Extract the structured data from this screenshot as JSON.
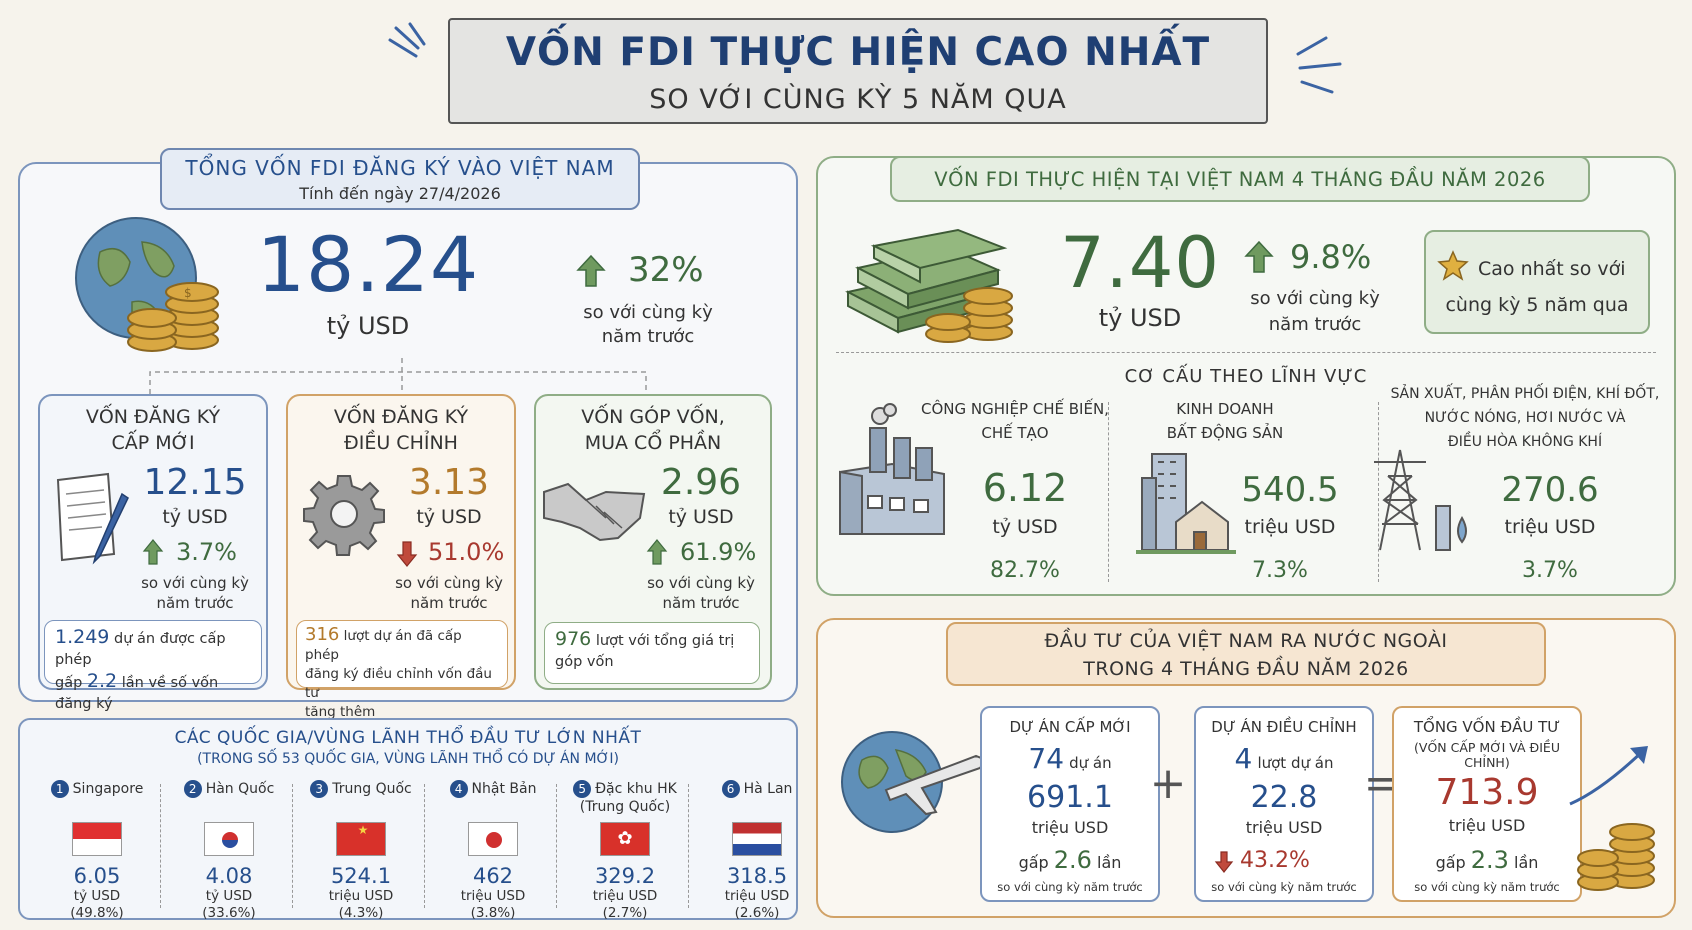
{
  "header": {
    "title": "VỐN FDI THỰC HIỆN CAO NHẤT",
    "subtitle": "SO VỚI CÙNG KỲ 5 NĂM QUA"
  },
  "registered": {
    "title": "TỔNG VỐN FDI ĐĂNG KÝ VÀO VIỆT NAM",
    "date": "Tính đến ngày 27/4/2026",
    "value": "18.24",
    "unit": "tỷ USD",
    "change": "32%",
    "change_note1": "so với cùng kỳ",
    "change_note2": "năm trước",
    "new": {
      "title1": "VỐN ĐĂNG KÝ",
      "title2": "CẤP MỚI",
      "value": "12.15",
      "unit": "tỷ USD",
      "change": "3.7%",
      "note1": "so với cùng kỳ",
      "note2": "năm trước",
      "num1": "1.249",
      "text1": "dự án được cấp phép",
      "pre2": "gấp",
      "num2": "2.2",
      "text2": "lần về số vốn đăng ký"
    },
    "adjust": {
      "title1": "VỐN ĐĂNG KÝ",
      "title2": "ĐIỀU CHỈNH",
      "value": "3.13",
      "unit": "tỷ USD",
      "change": "51.0%",
      "note1": "so với cùng kỳ",
      "note2": "năm trước",
      "num1": "316",
      "text1": "lượt dự án đã cấp phép",
      "text2": "đăng ký điều chỉnh vốn đầu tư",
      "text3": "tăng thêm"
    },
    "contrib": {
      "title1": "VỐN GÓP VỐN,",
      "title2": "MUA CỔ PHẦN",
      "value": "2.96",
      "unit": "tỷ USD",
      "change": "61.9%",
      "note1": "so với cùng kỳ",
      "note2": "năm trước",
      "num1": "976",
      "text1": "lượt với tổng giá trị",
      "text2": "góp vốn"
    }
  },
  "countries": {
    "title": "CÁC QUỐC GIA/VÙNG LÃNH THỔ ĐẦU TƯ LỚN NHẤT",
    "subtitle": "(TRONG SỐ 53 QUỐC GIA, VÙNG LÃNH THỔ CÓ DỰ ÁN MỚI)",
    "items": [
      {
        "rank": "1",
        "name": "Singapore",
        "name2": "",
        "value": "6.05",
        "unit": "tỷ USD",
        "share": "(49.8%)"
      },
      {
        "rank": "2",
        "name": "Hàn Quốc",
        "name2": "",
        "value": "4.08",
        "unit": "tỷ USD",
        "share": "(33.6%)"
      },
      {
        "rank": "3",
        "name": "Trung Quốc",
        "name2": "",
        "value": "524.1",
        "unit": "triệu USD",
        "share": "(4.3%)"
      },
      {
        "rank": "4",
        "name": "Nhật Bản",
        "name2": "",
        "value": "462",
        "unit": "triệu USD",
        "share": "(3.8%)"
      },
      {
        "rank": "5",
        "name": "Đặc khu HK",
        "name2": "(Trung Quốc)",
        "value": "329.2",
        "unit": "triệu USD",
        "share": "(2.7%)"
      },
      {
        "rank": "6",
        "name": "Hà Lan",
        "name2": "",
        "value": "318.5",
        "unit": "triệu USD",
        "share": "(2.6%)"
      }
    ]
  },
  "disbursed": {
    "title": "VỐN FDI THỰC HIỆN TẠI VIỆT NAM 4 THÁNG ĐẦU NĂM 2026",
    "value": "7.40",
    "unit": "tỷ USD",
    "change": "9.8%",
    "change_note1": "so với cùng kỳ",
    "change_note2": "năm trước",
    "badge1": "Cao nhất so với",
    "badge2": "cùng kỳ 5 năm qua",
    "structure_title": "CƠ CẤU THEO LĨNH VỰC",
    "sectors": [
      {
        "name1": "CÔNG NGHIỆP CHẾ BIẾN,",
        "name2": "CHẾ TẠO",
        "name3": "",
        "value": "6.12",
        "unit": "tỷ USD",
        "share": "82.7%"
      },
      {
        "name1": "KINH DOANH",
        "name2": "BẤT ĐỘNG SẢN",
        "name3": "",
        "value": "540.5",
        "unit": "triệu USD",
        "share": "7.3%"
      },
      {
        "name1": "SẢN XUẤT, PHÂN PHỐI ĐIỆN, KHÍ ĐỐT,",
        "name2": "NƯỚC NÓNG, HƠI NƯỚC VÀ",
        "name3": "ĐIỀU HÒA KHÔNG KHÍ",
        "value": "270.6",
        "unit": "triệu USD",
        "share": "3.7%"
      }
    ]
  },
  "outward": {
    "title1": "ĐẦU TƯ CỦA VIỆT NAM RA NƯỚC NGOÀI",
    "title2": "TRONG 4 THÁNG ĐẦU NĂM 2026",
    "new": {
      "title": "DỰ ÁN CẤP MỚI",
      "count": "74",
      "count_unit": "dự án",
      "value": "691.1",
      "unit": "triệu USD",
      "pre": "gấp",
      "mult": "2.6",
      "post": "lần",
      "note": "so với cùng kỳ năm trước"
    },
    "plus": "+",
    "adjust": {
      "title": "DỰ ÁN ĐIỀU CHỈNH",
      "count": "4",
      "count_unit": "lượt dự án",
      "value": "22.8",
      "unit": "triệu USD",
      "change": "43.2%",
      "note": "so với cùng kỳ năm trước"
    },
    "equals": "=",
    "total": {
      "title1": "TỔNG VỐN ĐẦU TƯ",
      "title2": "(VỐN CẤP MỚI VÀ ĐIỀU CHỈNH)",
      "value": "713.9",
      "unit": "triệu USD",
      "pre": "gấp",
      "mult": "2.3",
      "post": "lần",
      "note": "so với cùng kỳ năm trước"
    }
  },
  "colors": {
    "blue": "#264f8c",
    "green": "#3f6b3f",
    "orange": "#b37a2c",
    "red": "#a8392f"
  }
}
